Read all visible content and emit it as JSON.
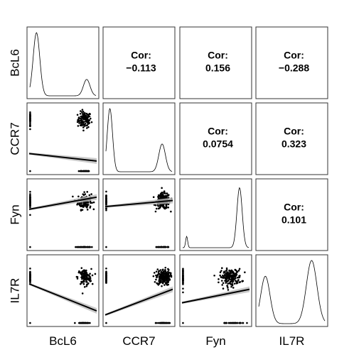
{
  "chart_data": {
    "type": "scatterplot-matrix",
    "variables": [
      "BcL6",
      "CCR7",
      "Fyn",
      "IL7R"
    ],
    "correlation_label": "Cor:",
    "correlations": [
      {
        "row": "BcL6",
        "col": "CCR7",
        "value": "−0.113"
      },
      {
        "row": "BcL6",
        "col": "Fyn",
        "value": "0.156"
      },
      {
        "row": "BcL6",
        "col": "IL7R",
        "value": "−0.288"
      },
      {
        "row": "CCR7",
        "col": "Fyn",
        "value": "0.0754"
      },
      {
        "row": "CCR7",
        "col": "IL7R",
        "value": "0.323"
      },
      {
        "row": "Fyn",
        "col": "IL7R",
        "value": "0.101"
      }
    ],
    "densities": {
      "BcL6": {
        "modes": [
          {
            "center": 0.1,
            "width": 0.05,
            "height": 1.0
          },
          {
            "center": 0.86,
            "width": 0.05,
            "height": 0.26
          }
        ]
      },
      "CCR7": {
        "modes": [
          {
            "center": 0.06,
            "width": 0.04,
            "height": 1.0
          },
          {
            "center": 0.85,
            "width": 0.05,
            "height": 0.44
          }
        ]
      },
      "Fyn": {
        "modes": [
          {
            "center": 0.06,
            "width": 0.015,
            "height": 0.18
          },
          {
            "center": 0.86,
            "width": 0.04,
            "height": 0.95
          }
        ]
      },
      "IL7R": {
        "modes": [
          {
            "center": 0.1,
            "width": 0.07,
            "height": 0.75
          },
          {
            "center": 0.8,
            "width": 0.08,
            "height": 1.0
          }
        ]
      }
    },
    "regression_lines": [
      {
        "row": "CCR7",
        "col": "BcL6",
        "y0": 0.28,
        "y1": 0.17
      },
      {
        "row": "Fyn",
        "col": "BcL6",
        "y0": 0.58,
        "y1": 0.76
      },
      {
        "row": "Fyn",
        "col": "CCR7",
        "y0": 0.62,
        "y1": 0.71
      },
      {
        "row": "IL7R",
        "col": "BcL6",
        "y0": 0.6,
        "y1": 0.2
      },
      {
        "row": "IL7R",
        "col": "CCR7",
        "y0": 0.14,
        "y1": 0.52
      },
      {
        "row": "IL7R",
        "col": "Fyn",
        "y0": 0.32,
        "y1": 0.52
      }
    ],
    "colors": {
      "points": "#000000",
      "line": "#000000",
      "band": "#bdbdbd",
      "frame": "#333333"
    }
  }
}
